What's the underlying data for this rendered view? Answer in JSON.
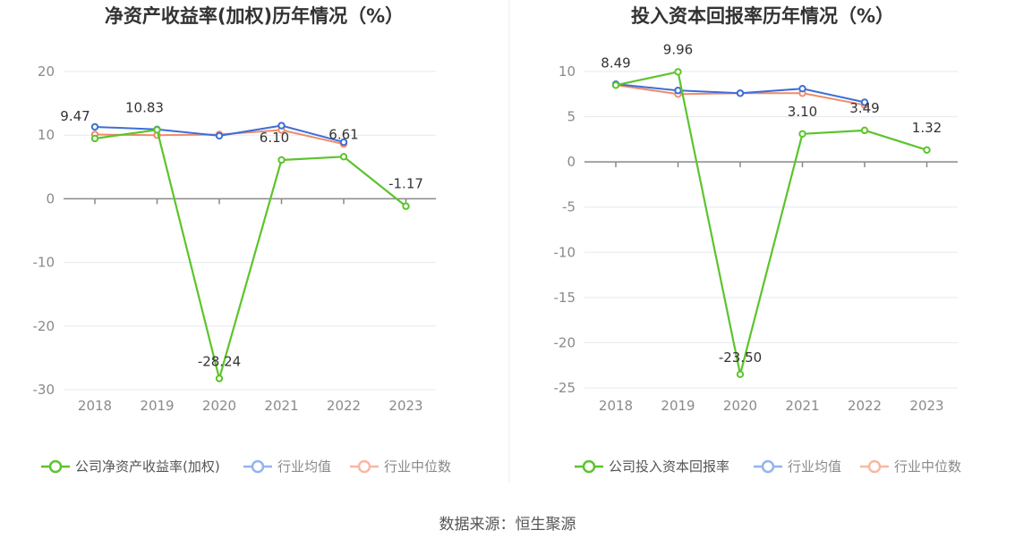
{
  "colors": {
    "company": "#5cc42c",
    "industry_avg": "#3d6fd6",
    "industry_median": "#f08a6c",
    "legend_avg": "#93b3f0",
    "legend_median": "#f7b8a3",
    "grid": "#e5e8ef",
    "axis": "#888888"
  },
  "chart_data": [
    {
      "type": "line",
      "title": "净资产收益率(加权)历年情况（%）",
      "categories": [
        "2018",
        "2019",
        "2020",
        "2021",
        "2022",
        "2023"
      ],
      "ylim": [
        -30,
        20
      ],
      "yticks": [
        20,
        10,
        0,
        -10,
        -20,
        -30
      ],
      "grid": true,
      "legend_position": "bottom",
      "series": [
        {
          "name": "公司净资产收益率(加权)",
          "values": [
            9.47,
            10.83,
            -28.24,
            6.1,
            6.61,
            -1.17
          ],
          "labels": [
            "9.47",
            "10.83",
            "-28.24",
            "6.10",
            "6.61",
            "-1.17"
          ]
        },
        {
          "name": "行业均值",
          "values": [
            11.3,
            10.9,
            9.9,
            11.5,
            8.9,
            null
          ]
        },
        {
          "name": "行业中位数",
          "values": [
            10.1,
            10.0,
            10.1,
            10.8,
            8.6,
            null
          ]
        }
      ]
    },
    {
      "type": "line",
      "title": "投入资本回报率历年情况（%）",
      "categories": [
        "2018",
        "2019",
        "2020",
        "2021",
        "2022",
        "2023"
      ],
      "ylim": [
        -25,
        10
      ],
      "yticks": [
        10,
        5,
        0,
        -5,
        -10,
        -15,
        -20,
        -25
      ],
      "grid": true,
      "legend_position": "bottom",
      "series": [
        {
          "name": "公司投入资本回报率",
          "values": [
            8.49,
            9.96,
            -23.5,
            3.1,
            3.49,
            1.32
          ],
          "labels": [
            "8.49",
            "9.96",
            "-23.50",
            "3.10",
            "3.49",
            "1.32"
          ]
        },
        {
          "name": "行业均值",
          "values": [
            8.6,
            7.9,
            7.6,
            8.1,
            6.6,
            null
          ]
        },
        {
          "name": "行业中位数",
          "values": [
            8.5,
            7.5,
            7.6,
            7.6,
            6.3,
            null
          ]
        }
      ]
    }
  ],
  "source": "数据来源：恒生聚源"
}
